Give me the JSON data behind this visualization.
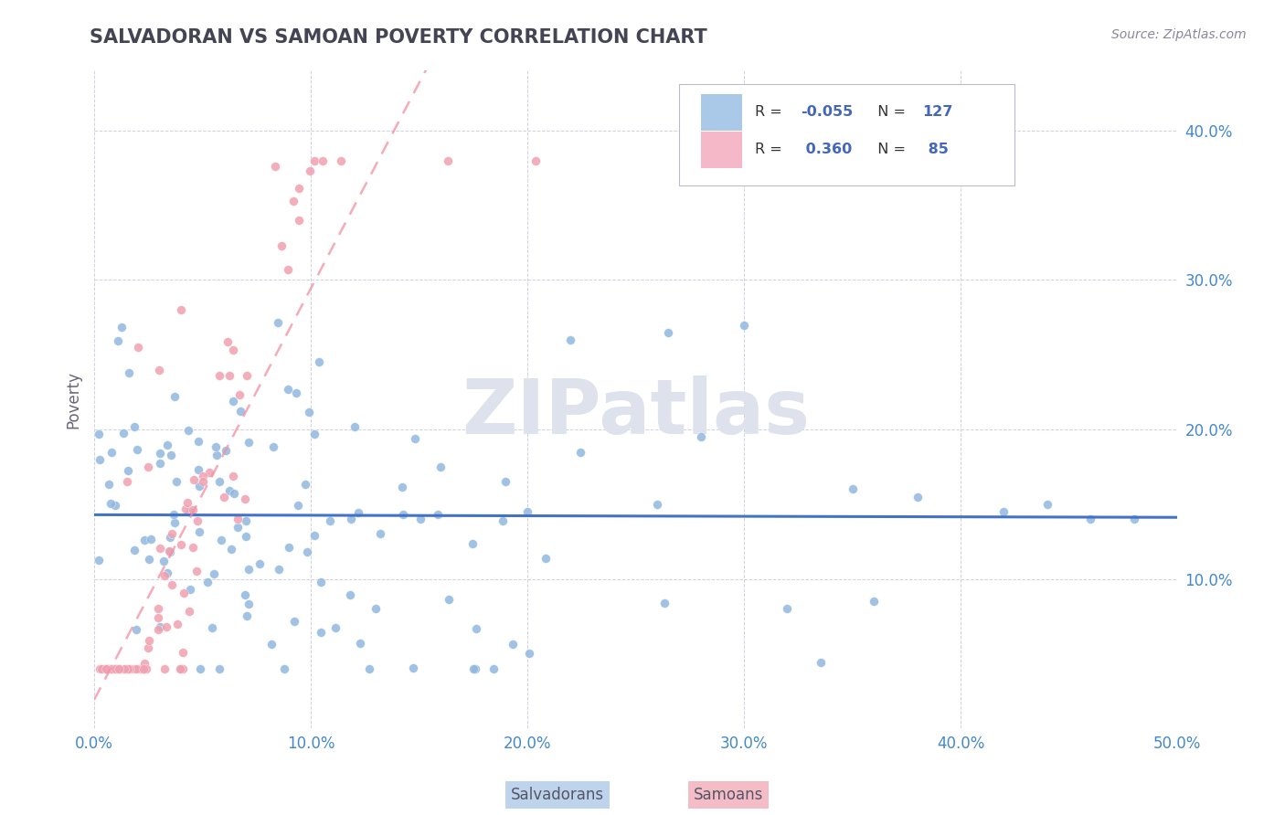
{
  "title": "SALVADORAN VS SAMOAN POVERTY CORRELATION CHART",
  "source": "Source: ZipAtlas.com",
  "ylabel": "Poverty",
  "xlim": [
    0.0,
    0.5
  ],
  "ylim": [
    0.0,
    0.44
  ],
  "xticks": [
    0.0,
    0.1,
    0.2,
    0.3,
    0.4,
    0.5
  ],
  "yticks": [
    0.1,
    0.2,
    0.3,
    0.4
  ],
  "ytick_labels": [
    "10.0%",
    "20.0%",
    "30.0%",
    "40.0%"
  ],
  "xtick_labels": [
    "0.0%",
    "10.0%",
    "20.0%",
    "30.0%",
    "40.0%",
    "50.0%"
  ],
  "salvadoran_color": "#92b8e0",
  "samoan_color": "#f0a0b0",
  "salvadoran_line_color": "#4472c4",
  "samoan_line_color": "#f48fa0",
  "salvadoran_R": -0.055,
  "samoan_R": 0.36,
  "salvadoran_N": 127,
  "samoan_N": 85,
  "background_color": "#ffffff",
  "grid_color": "#d0d0e0",
  "title_color": "#444455",
  "tick_color": "#4488cc",
  "axis_label_color": "#666677",
  "watermark": "ZIPatlas",
  "watermark_color": "#dde2ec",
  "legend_patch_salv": "#aac8e8",
  "legend_patch_samo": "#f4b8c8",
  "legend_text_color": "#333333",
  "legend_num_color": "#4466bb",
  "source_color": "#888899"
}
